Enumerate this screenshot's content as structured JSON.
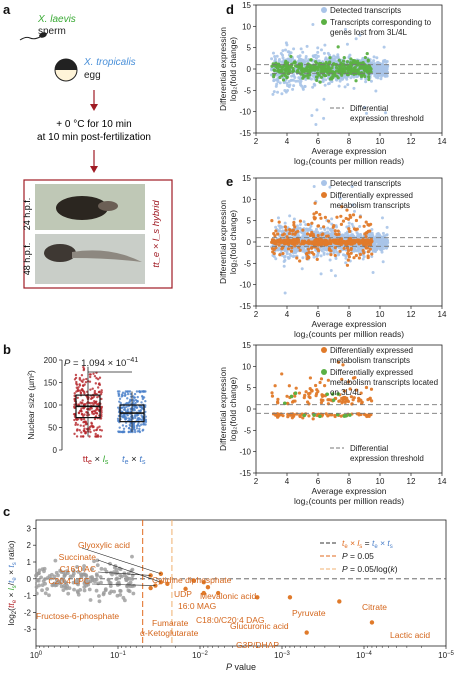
{
  "panels": {
    "a": {
      "letter": "a",
      "sperm_species": "X. laevis",
      "sperm_label": "sperm",
      "egg_species": "X. tropicalis",
      "egg_label": "egg",
      "treatment_line1": "+ 0 °C for 10 min",
      "treatment_line2": "at 10 min post-fertilization",
      "time_24": "24 h.p.f.",
      "time_48": "48 h.p.f.",
      "hybrid_label": "tt_e × l_s hybrid",
      "colors": {
        "laevis": "#3aaa35",
        "tropicalis": "#4a90d9",
        "arrow": "#a01b24",
        "frame": "#a01b24"
      }
    },
    "b": {
      "letter": "b"
    },
    "c": {
      "letter": "c"
    },
    "d": {
      "letter": "d"
    },
    "e": {
      "letter": "e"
    }
  },
  "chart_data": [
    {
      "id": "b",
      "type": "box",
      "ylabel": "Nuclear size (µm²)",
      "yticks": [
        0,
        50,
        100,
        150,
        200
      ],
      "ylim": [
        0,
        200
      ],
      "annotation": "P = 1.094 × 10^-41",
      "categories": [
        "tt_e × l_s",
        "t_e × t_s"
      ],
      "series": [
        {
          "name": "tt_e × l_s",
          "color": "#b5262b",
          "q1": 72,
          "median": 97,
          "q3": 122,
          "min": 30,
          "max": 185
        },
        {
          "name": "t_e × t_s",
          "color": "#4a7fc9",
          "q1": 63,
          "median": 82,
          "q3": 100,
          "min": 40,
          "max": 130
        }
      ]
    },
    {
      "id": "c",
      "type": "scatter",
      "xlabel": "P value",
      "ylabel": "log2(tt_e × l_s / t_e × t_s ratio)",
      "xscale": "log-reversed",
      "xticks": [
        "10^0",
        "10^-1",
        "10^-2",
        "10^-3",
        "10^-4",
        "10^-5"
      ],
      "xlim": [
        1,
        1e-05
      ],
      "ylim": [
        -4.0,
        3.5
      ],
      "legend": [
        {
          "label": "t_e × l_s = t_e × t_s",
          "style": "dash",
          "color": "#333333"
        },
        {
          "label": "P = 0.05",
          "style": "dash",
          "color": "#e06a1e"
        },
        {
          "label": "P = 0.05/log(k)",
          "style": "dash",
          "color": "#f0b070"
        }
      ],
      "thresholds": {
        "p_005": 0.05,
        "p_bonf": 0.022
      },
      "labelled_points": [
        {
          "label": "Glyoxylic acid",
          "p": 0.03,
          "log2": 0.3
        },
        {
          "label": "Succinate",
          "p": 0.03,
          "log2": -0.2
        },
        {
          "label": "C16:0 AC",
          "p": 0.04,
          "log2": 0.2
        },
        {
          "label": "C20:4 LPC",
          "p": 0.035,
          "log2": -0.4
        },
        {
          "label": "Cytidine diphosphate",
          "p": 0.025,
          "log2": -0.3
        },
        {
          "label": "UDP",
          "p": 0.012,
          "log2": -0.1
        },
        {
          "label": "Mevalonic acid",
          "p": 0.009,
          "log2": -0.2
        },
        {
          "label": "16:0 MAG",
          "p": 0.008,
          "log2": -0.5
        },
        {
          "label": "Fructose-6-phosphate",
          "p": 0.04,
          "log2": -0.55
        },
        {
          "label": "Fumarate",
          "p": 0.015,
          "log2": -0.6
        },
        {
          "label": "C18:0/C20:4 DAG",
          "p": 0.009,
          "log2": -0.85
        },
        {
          "label": "α-Ketoglutarate",
          "p": 0.006,
          "log2": -0.85
        },
        {
          "label": "Glucuronic acid",
          "p": 0.002,
          "log2": -1.1
        },
        {
          "label": "Pyruvate",
          "p": 0.0008,
          "log2": -1.1
        },
        {
          "label": "Citrate",
          "p": 0.0002,
          "log2": -1.35
        },
        {
          "label": "G3P/DHAP",
          "p": 0.0005,
          "log2": -3.2
        },
        {
          "label": "Lactic acid",
          "p": 8e-05,
          "log2": -2.6
        }
      ]
    },
    {
      "id": "d",
      "type": "scatter",
      "xlabel": "Average expression log2(counts per million reads)",
      "ylabel": "Differential expression log2(fold change)",
      "xlim": [
        2,
        14
      ],
      "ylim": [
        -15,
        15
      ],
      "xticks": [
        2,
        4,
        6,
        8,
        10,
        12,
        14
      ],
      "yticks": [
        -15,
        -10,
        -5,
        0,
        5,
        10,
        15
      ],
      "series": [
        {
          "name": "Detected transcripts",
          "color": "#a9c4e8"
        },
        {
          "name": "Transcripts corresponding to genes lost from 3L/4L",
          "color": "#5bb043"
        }
      ],
      "threshold_label": "Differential expression threshold",
      "threshold_values": [
        1,
        -1
      ]
    },
    {
      "id": "e-top",
      "type": "scatter",
      "xlabel": "Average expression log2(counts per million reads)",
      "ylabel": "Differential expression log2(fold change)",
      "xlim": [
        2,
        14
      ],
      "ylim": [
        -15,
        15
      ],
      "xticks": [
        2,
        4,
        6,
        8,
        10,
        12,
        14
      ],
      "yticks": [
        -15,
        -10,
        -5,
        0,
        5,
        10,
        15
      ],
      "series": [
        {
          "name": "Detected transcripts",
          "color": "#a9c4e8"
        },
        {
          "name": "Differentially expressed metabolism transcripts",
          "color": "#e07a2a"
        }
      ]
    },
    {
      "id": "e-bottom",
      "type": "scatter",
      "xlabel": "Average expression log2(counts per million reads)",
      "ylabel": "Differential expression log2(fold change)",
      "xlim": [
        2,
        14
      ],
      "ylim": [
        -15,
        15
      ],
      "xticks": [
        2,
        4,
        6,
        8,
        10,
        12,
        14
      ],
      "yticks": [
        -15,
        -10,
        -5,
        0,
        5,
        10,
        15
      ],
      "series": [
        {
          "name": "Differentially expressed metabolism transcripts",
          "color": "#e07a2a"
        },
        {
          "name": "Differentially expressed metabolism transcripts located on 3L/4L",
          "color": "#5bb043"
        }
      ],
      "threshold_label": "Differential expression threshold"
    }
  ]
}
